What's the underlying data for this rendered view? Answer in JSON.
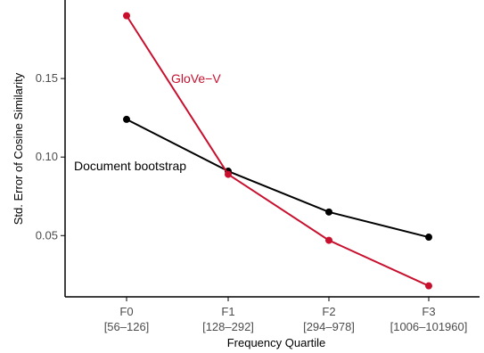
{
  "chart_data": {
    "type": "line",
    "xlabel": "Frequency Quartile",
    "ylabel": "Std. Error of Cosine Similarity",
    "categories": [
      "F0",
      "F1",
      "F2",
      "F3"
    ],
    "category_sublabels": [
      "[56–126]",
      "[128–292]",
      "[294–978]",
      "[1006–101960]"
    ],
    "ylim": [
      0.011,
      0.2
    ],
    "yticks": [
      0.05,
      0.1,
      0.15
    ],
    "ytick_labels": [
      "0.05",
      "0.10",
      "0.15"
    ],
    "grid": false,
    "series": [
      {
        "name": "Document bootstrap",
        "color": "#000000",
        "values": [
          0.124,
          0.091,
          0.065,
          0.049
        ]
      },
      {
        "name": "GloVe−V",
        "color": "#c8102e",
        "values": [
          0.19,
          0.089,
          0.047,
          0.018
        ]
      }
    ]
  }
}
